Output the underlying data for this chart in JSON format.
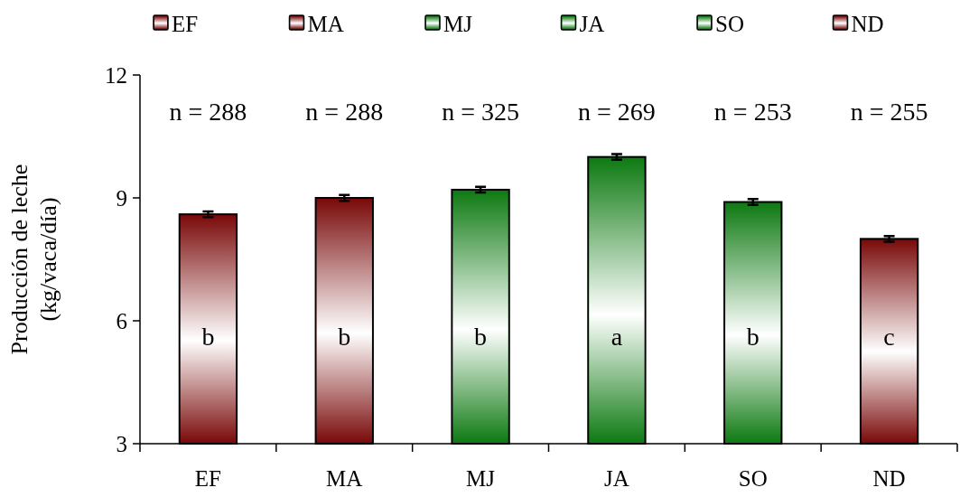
{
  "chart_data": {
    "type": "bar",
    "categories": [
      "EF",
      "MA",
      "MJ",
      "JA",
      "SO",
      "ND"
    ],
    "series": [
      {
        "name": "EF",
        "color": "#7a0a0a",
        "values": [
          8.6,
          null,
          null,
          null,
          null,
          null
        ],
        "errors": [
          0.07,
          null,
          null,
          null,
          null,
          null
        ]
      },
      {
        "name": "MA",
        "color": "#7a0a0a",
        "values": [
          null,
          9.0,
          null,
          null,
          null,
          null
        ],
        "errors": [
          null,
          0.07,
          null,
          null,
          null,
          null
        ]
      },
      {
        "name": "MJ",
        "color": "#0e7a12",
        "values": [
          null,
          null,
          9.2,
          null,
          null,
          null
        ],
        "errors": [
          null,
          null,
          0.07,
          null,
          null,
          null
        ]
      },
      {
        "name": "JA",
        "color": "#0e7a12",
        "values": [
          null,
          null,
          null,
          10.0,
          null,
          null
        ],
        "errors": [
          null,
          null,
          null,
          0.07,
          null,
          null
        ]
      },
      {
        "name": "SO",
        "color": "#0e7a12",
        "values": [
          null,
          null,
          null,
          null,
          8.9,
          null
        ],
        "errors": [
          null,
          null,
          null,
          null,
          0.07,
          null
        ]
      },
      {
        "name": "ND",
        "color": "#7a0a0a",
        "values": [
          null,
          null,
          null,
          null,
          null,
          8.0
        ],
        "errors": [
          null,
          null,
          null,
          null,
          null,
          0.07
        ]
      }
    ],
    "ylabel": "Producción de leche\n(kg/vaca/día)",
    "ylim": [
      3,
      12
    ],
    "yticks": [
      3,
      6,
      9,
      12
    ],
    "grid": false,
    "legend": "top",
    "annotations": [
      "n = 288",
      "n = 288",
      "n = 325",
      "n = 269",
      "n = 253",
      "n = 255",
      "b",
      "b",
      "b",
      "a",
      "b",
      "c"
    ]
  }
}
